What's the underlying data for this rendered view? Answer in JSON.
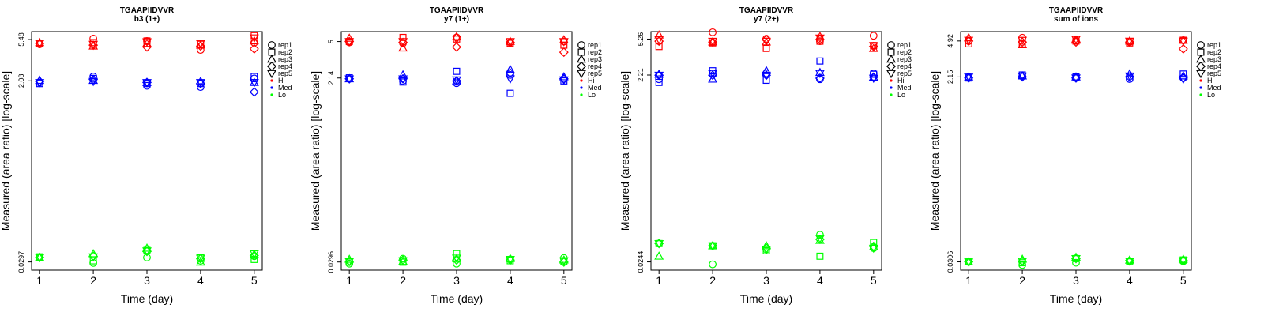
{
  "figure": {
    "legend_position": "right-outside-top",
    "colors": {
      "Hi": "#ff0000",
      "Med": "#0000ff",
      "Lo": "#00ff00"
    }
  },
  "legend": {
    "reps": [
      "rep1",
      "rep2",
      "rep3",
      "rep4",
      "rep5"
    ],
    "levels": [
      "Hi",
      "Med",
      "Lo"
    ],
    "symbols": {
      "rep1": "circle",
      "rep2": "square",
      "rep3": "triangle",
      "rep4": "diamond",
      "rep5": "triangle-down"
    }
  },
  "chart_data": [
    {
      "type": "scatter",
      "title": "TGAAPIIDVVR",
      "subtitle": "b3 (1+)",
      "xlabel": "Time (day)",
      "ylabel": "Measured (area ratio) [log-scale]",
      "ylog": true,
      "xticks": [
        1,
        2,
        3,
        4,
        5
      ],
      "yticks": [
        0.0297,
        2.08,
        5.48
      ],
      "ytick_labels": [
        "0.0297",
        "2.08",
        "5.48"
      ],
      "ylim": [
        0.0245,
        6.6
      ],
      "xlim": [
        0.85,
        5.15
      ],
      "series": [
        {
          "rep": "rep1",
          "level": "Hi",
          "values": [
            4.9,
            5.6,
            5.3,
            4.3,
            5.1
          ]
        },
        {
          "rep": "rep2",
          "level": "Hi",
          "values": [
            5.0,
            5.1,
            5.3,
            4.9,
            6.0
          ]
        },
        {
          "rep": "rep3",
          "level": "Hi",
          "values": [
            5.1,
            4.7,
            5.0,
            4.8,
            5.3
          ]
        },
        {
          "rep": "rep4",
          "level": "Hi",
          "values": [
            5.0,
            4.8,
            4.6,
            4.7,
            4.4
          ]
        },
        {
          "rep": "rep5",
          "level": "Hi",
          "values": [
            5.0,
            4.9,
            5.2,
            5.0,
            5.7
          ]
        },
        {
          "rep": "rep1",
          "level": "Med",
          "values": [
            2.0,
            2.3,
            1.85,
            1.8,
            2.2
          ]
        },
        {
          "rep": "rep2",
          "level": "Med",
          "values": [
            1.95,
            2.2,
            1.95,
            1.95,
            2.3
          ]
        },
        {
          "rep": "rep3",
          "level": "Med",
          "values": [
            2.1,
            2.1,
            2.0,
            2.05,
            2.0
          ]
        },
        {
          "rep": "rep4",
          "level": "Med",
          "values": [
            2.05,
            2.15,
            2.0,
            1.95,
            1.6
          ]
        },
        {
          "rep": "rep5",
          "level": "Med",
          "values": [
            2.0,
            2.05,
            2.0,
            2.0,
            2.0
          ]
        },
        {
          "rep": "rep1",
          "level": "Lo",
          "values": [
            0.033,
            0.029,
            0.033,
            0.0305,
            0.034
          ]
        },
        {
          "rep": "rep2",
          "level": "Lo",
          "values": [
            0.0335,
            0.0305,
            0.039,
            0.033,
            0.0315
          ]
        },
        {
          "rep": "rep3",
          "level": "Lo",
          "values": [
            0.033,
            0.036,
            0.041,
            0.0295,
            0.0355
          ]
        },
        {
          "rep": "rep4",
          "level": "Lo",
          "values": [
            0.033,
            0.034,
            0.038,
            0.032,
            0.0345
          ]
        },
        {
          "rep": "rep5",
          "level": "Lo",
          "values": [
            0.033,
            0.0335,
            0.0385,
            0.0325,
            0.036
          ]
        }
      ]
    },
    {
      "type": "scatter",
      "title": "TGAAPIIDVVR",
      "subtitle": "y7 (1+)",
      "xlabel": "Time (day)",
      "ylabel": "Measured (area ratio) [log-scale]",
      "ylog": true,
      "xticks": [
        1,
        2,
        3,
        4,
        5
      ],
      "yticks": [
        0.0296,
        2.14,
        5
      ],
      "ytick_labels": [
        "0.0296",
        "2.14",
        "5"
      ],
      "ylim": [
        0.0245,
        6.3
      ],
      "xlim": [
        0.85,
        5.15
      ],
      "series": [
        {
          "rep": "rep1",
          "level": "Hi",
          "values": [
            4.9,
            4.8,
            5.5,
            4.9,
            5.0
          ]
        },
        {
          "rep": "rep2",
          "level": "Hi",
          "values": [
            5.0,
            5.5,
            5.3,
            4.8,
            4.6
          ]
        },
        {
          "rep": "rep3",
          "level": "Hi",
          "values": [
            5.4,
            4.3,
            5.6,
            5.0,
            5.2
          ]
        },
        {
          "rep": "rep4",
          "level": "Hi",
          "values": [
            5.0,
            4.9,
            4.4,
            4.9,
            3.9
          ]
        },
        {
          "rep": "rep5",
          "level": "Hi",
          "values": [
            5.0,
            5.0,
            5.3,
            5.0,
            5.0
          ]
        },
        {
          "rep": "rep1",
          "level": "Med",
          "values": [
            2.1,
            2.0,
            1.9,
            2.3,
            2.1
          ]
        },
        {
          "rep": "rep2",
          "level": "Med",
          "values": [
            2.15,
            1.95,
            2.5,
            1.5,
            2.0
          ]
        },
        {
          "rep": "rep3",
          "level": "Med",
          "values": [
            2.1,
            2.3,
            2.0,
            2.6,
            2.2
          ]
        },
        {
          "rep": "rep4",
          "level": "Med",
          "values": [
            2.1,
            2.1,
            2.0,
            2.4,
            2.1
          ]
        },
        {
          "rep": "rep5",
          "level": "Med",
          "values": [
            2.1,
            2.1,
            2.05,
            2.1,
            2.05
          ]
        },
        {
          "rep": "rep1",
          "level": "Lo",
          "values": [
            0.0285,
            0.032,
            0.0285,
            0.0315,
            0.0325
          ]
        },
        {
          "rep": "rep2",
          "level": "Lo",
          "values": [
            0.0295,
            0.0295,
            0.036,
            0.0305,
            0.03
          ]
        },
        {
          "rep": "rep3",
          "level": "Lo",
          "values": [
            0.0315,
            0.03,
            0.032,
            0.032,
            0.031
          ]
        },
        {
          "rep": "rep4",
          "level": "Lo",
          "values": [
            0.03,
            0.031,
            0.031,
            0.031,
            0.0295
          ]
        },
        {
          "rep": "rep5",
          "level": "Lo",
          "values": [
            0.03,
            0.0305,
            0.0325,
            0.0315,
            0.0305
          ]
        }
      ]
    },
    {
      "type": "scatter",
      "title": "TGAAPIIDVVR",
      "subtitle": "y7 (2+)",
      "xlabel": "Time (day)",
      "ylabel": "Measured (area ratio) [log-scale]",
      "ylog": true,
      "xticks": [
        1,
        2,
        3,
        4,
        5
      ],
      "yticks": [
        0.0244,
        2.21,
        5.26
      ],
      "ytick_labels": [
        "0.0244",
        "2.21",
        "5.26"
      ],
      "ylim": [
        0.02,
        6.3
      ],
      "xlim": [
        0.85,
        5.15
      ],
      "series": [
        {
          "rep": "rep1",
          "level": "Hi",
          "values": [
            5.0,
            6.2,
            5.3,
            5.0,
            5.7
          ]
        },
        {
          "rep": "rep2",
          "level": "Hi",
          "values": [
            4.4,
            4.8,
            4.2,
            5.0,
            4.5
          ]
        },
        {
          "rep": "rep3",
          "level": "Hi",
          "values": [
            5.8,
            4.9,
            4.9,
            5.6,
            4.2
          ]
        },
        {
          "rep": "rep4",
          "level": "Hi",
          "values": [
            5.0,
            4.9,
            5.2,
            5.2,
            4.4
          ]
        },
        {
          "rep": "rep5",
          "level": "Hi",
          "values": [
            5.2,
            5.0,
            5.0,
            5.4,
            4.5
          ]
        },
        {
          "rep": "rep1",
          "level": "Med",
          "values": [
            2.0,
            2.3,
            2.3,
            2.0,
            2.3
          ]
        },
        {
          "rep": "rep2",
          "level": "Med",
          "values": [
            1.85,
            2.45,
            1.95,
            3.1,
            2.25
          ]
        },
        {
          "rep": "rep3",
          "level": "Med",
          "values": [
            2.25,
            2.0,
            2.45,
            2.35,
            2.1
          ]
        },
        {
          "rep": "rep4",
          "level": "Med",
          "values": [
            2.2,
            2.2,
            2.2,
            2.05,
            2.1
          ]
        },
        {
          "rep": "rep5",
          "level": "Med",
          "values": [
            2.2,
            2.3,
            2.2,
            2.3,
            2.05
          ]
        },
        {
          "rep": "rep1",
          "level": "Lo",
          "values": [
            0.038,
            0.023,
            0.033,
            0.047,
            0.034
          ]
        },
        {
          "rep": "rep2",
          "level": "Lo",
          "values": [
            0.038,
            0.036,
            0.032,
            0.028,
            0.039
          ]
        },
        {
          "rep": "rep3",
          "level": "Lo",
          "values": [
            0.028,
            0.036,
            0.036,
            0.041,
            0.035
          ]
        },
        {
          "rep": "rep4",
          "level": "Lo",
          "values": [
            0.038,
            0.036,
            0.034,
            0.042,
            0.0355
          ]
        },
        {
          "rep": "rep5",
          "level": "Lo",
          "values": [
            0.038,
            0.036,
            0.033,
            0.043,
            0.034
          ]
        }
      ]
    },
    {
      "type": "scatter",
      "title": "TGAAPIIDVVR",
      "subtitle": "sum of ions",
      "xlabel": "Time (day)",
      "ylabel": "Measured (area ratio) [log-scale]",
      "ylog": true,
      "xticks": [
        1,
        2,
        3,
        4,
        5
      ],
      "yticks": [
        0.0306,
        2.15,
        4.92
      ],
      "ytick_labels": [
        "0.0306",
        "2.15",
        "4.92"
      ],
      "ylim": [
        0.0253,
        6.1
      ],
      "xlim": [
        0.85,
        5.15
      ],
      "series": [
        {
          "rep": "rep1",
          "level": "Hi",
          "values": [
            4.9,
            5.3,
            5.0,
            4.8,
            5.0
          ]
        },
        {
          "rep": "rep2",
          "level": "Hi",
          "values": [
            4.6,
            4.6,
            4.9,
            4.7,
            5.0
          ]
        },
        {
          "rep": "rep3",
          "level": "Hi",
          "values": [
            5.3,
            4.5,
            5.0,
            4.9,
            5.0
          ]
        },
        {
          "rep": "rep4",
          "level": "Hi",
          "values": [
            4.9,
            4.8,
            4.8,
            4.8,
            4.1
          ]
        },
        {
          "rep": "rep5",
          "level": "Hi",
          "values": [
            5.0,
            5.0,
            5.1,
            4.9,
            4.9
          ]
        },
        {
          "rep": "rep1",
          "level": "Med",
          "values": [
            2.15,
            2.2,
            2.1,
            2.05,
            2.1
          ]
        },
        {
          "rep": "rep2",
          "level": "Med",
          "values": [
            2.1,
            2.25,
            2.15,
            2.1,
            2.3
          ]
        },
        {
          "rep": "rep3",
          "level": "Med",
          "values": [
            2.15,
            2.2,
            2.15,
            2.3,
            2.2
          ]
        },
        {
          "rep": "rep4",
          "level": "Med",
          "values": [
            2.1,
            2.15,
            2.1,
            2.15,
            2.1
          ]
        },
        {
          "rep": "rep5",
          "level": "Med",
          "values": [
            2.15,
            2.2,
            2.1,
            2.2,
            2.05
          ]
        },
        {
          "rep": "rep1",
          "level": "Lo",
          "values": [
            0.0306,
            0.0285,
            0.03,
            0.031,
            0.031
          ]
        },
        {
          "rep": "rep2",
          "level": "Lo",
          "values": [
            0.0306,
            0.03,
            0.033,
            0.0306,
            0.032
          ]
        },
        {
          "rep": "rep3",
          "level": "Lo",
          "values": [
            0.0306,
            0.0325,
            0.034,
            0.0318,
            0.0325
          ]
        },
        {
          "rep": "rep4",
          "level": "Lo",
          "values": [
            0.0306,
            0.031,
            0.033,
            0.0315,
            0.0315
          ]
        },
        {
          "rep": "rep5",
          "level": "Lo",
          "values": [
            0.0306,
            0.031,
            0.033,
            0.0312,
            0.0315
          ]
        }
      ]
    }
  ]
}
